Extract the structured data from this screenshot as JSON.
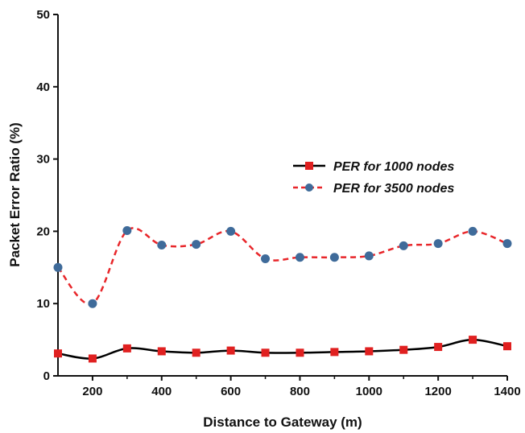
{
  "chart_data": {
    "type": "line",
    "xlabel": "Distance to Gateway (m)",
    "ylabel": "Packet Error Ratio (%)",
    "xlim": [
      100,
      1400
    ],
    "ylim": [
      0,
      50
    ],
    "x_ticks": [
      200,
      400,
      600,
      800,
      1000,
      1200,
      1400
    ],
    "x_tick_labels": [
      "200",
      "400",
      "600",
      "800",
      "1000",
      "1200",
      "1400"
    ],
    "y_ticks": [
      0,
      10,
      20,
      30,
      40,
      50
    ],
    "y_tick_labels": [
      "0",
      "10",
      "20",
      "30",
      "40",
      "50"
    ],
    "x": [
      100,
      200,
      300,
      400,
      500,
      600,
      700,
      800,
      900,
      1000,
      1100,
      1200,
      1300,
      1400
    ],
    "series": [
      {
        "name": "PER for 1000 nodes",
        "color": "#000000",
        "marker_color": "#e02020",
        "marker": "square",
        "line_style": "solid",
        "values": [
          3.1,
          2.4,
          3.8,
          3.4,
          3.2,
          3.5,
          3.2,
          3.2,
          3.3,
          3.4,
          3.6,
          4.0,
          5.0,
          4.1
        ]
      },
      {
        "name": "PER for 3500 nodes",
        "color": "#e8262a",
        "marker_color": "#3f6b9a",
        "marker": "circle",
        "line_style": "dashed",
        "values": [
          15.0,
          10.0,
          20.1,
          18.1,
          18.2,
          20.0,
          16.2,
          16.4,
          16.4,
          16.6,
          18.0,
          18.3,
          20.0,
          18.3
        ]
      }
    ],
    "legend_position": "center-right",
    "grid": false
  }
}
